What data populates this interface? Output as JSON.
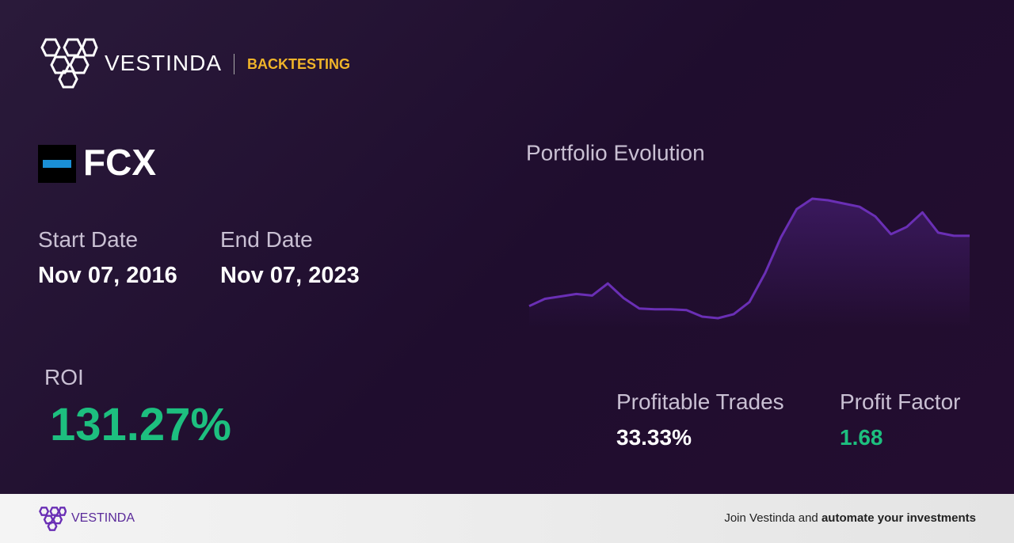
{
  "header": {
    "brand": "VESTINDA",
    "section": "BACKTESTING"
  },
  "asset": {
    "ticker": "FCX"
  },
  "dates": {
    "start_label": "Start Date",
    "start": "Nov 07, 2016",
    "end_label": "End Date",
    "end": "Nov 07, 2023"
  },
  "metrics": {
    "roi_label": "ROI",
    "roi": "131.27%",
    "trades_label": "Profitable Trades",
    "trades": "33.33%",
    "factor_label": "Profit Factor",
    "factor": "1.68"
  },
  "chart_data": {
    "type": "line",
    "title": "Portfolio Evolution",
    "color": "#6a2fb5",
    "values": [
      35,
      44,
      47,
      50,
      48,
      63,
      45,
      32,
      31,
      31,
      30,
      22,
      20,
      25,
      40,
      76,
      120,
      155,
      168,
      166,
      162,
      158,
      146,
      124,
      133,
      151,
      126,
      122,
      122
    ]
  },
  "footer": {
    "brand": "VESTINDA",
    "text_plain": "Join Vestinda and ",
    "text_bold": "automate your investments"
  }
}
